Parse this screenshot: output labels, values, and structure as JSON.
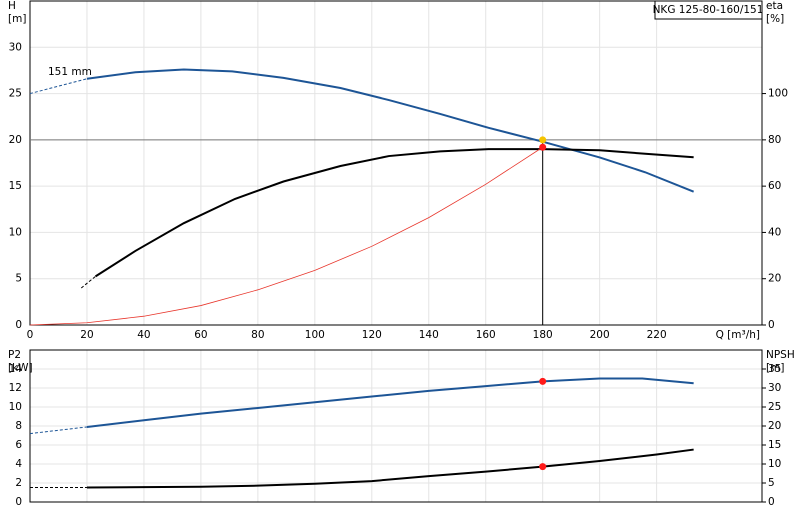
{
  "chart_data": [
    {
      "type": "line",
      "title": "NKG 125-80-160/151",
      "annotation": "151 mm",
      "ylabel": "H",
      "yunit": "[m]",
      "y2label": "eta",
      "y2unit": "[%]",
      "xlabel": "Q [m³/h]",
      "xlim": [
        0,
        257
      ],
      "xticks": [
        0,
        20,
        40,
        60,
        80,
        100,
        120,
        140,
        160,
        180,
        200,
        220
      ],
      "ylim": [
        0,
        35
      ],
      "yticks": [
        0,
        5,
        10,
        15,
        20,
        25,
        30
      ],
      "y2lim": [
        0,
        140
      ],
      "y2ticks": [
        0,
        20,
        40,
        60,
        80,
        100
      ],
      "grid": true,
      "show_xtick_labels": true,
      "series": [
        {
          "color": "#1d5596",
          "dashed": true,
          "x": [
            0,
            20
          ],
          "values": [
            25,
            26.6
          ]
        },
        {
          "color": "#1d5596",
          "x": [
            20,
            37,
            54,
            71,
            89,
            109,
            126,
            144,
            161,
            180,
            200,
            216,
            233
          ],
          "values": [
            26.6,
            27.3,
            27.6,
            27.4,
            26.7,
            25.6,
            24.3,
            22.8,
            21.3,
            19.8,
            18.1,
            16.5,
            14.4
          ]
        },
        {
          "color": "#000000",
          "dashed": true,
          "axis": "y2",
          "x": [
            18,
            23
          ],
          "values": [
            16,
            21
          ]
        },
        {
          "color": "#000000",
          "axis": "y2",
          "x": [
            23,
            37,
            54,
            72,
            89,
            109,
            126,
            144,
            161,
            180,
            200,
            216,
            233
          ],
          "values": [
            21,
            32,
            44,
            54.5,
            62,
            68.7,
            73,
            75,
            76,
            76,
            75.5,
            74,
            72.5
          ]
        },
        {
          "color": "#e8362c",
          "thin": true,
          "x": [
            0,
            20,
            40,
            60,
            80,
            100,
            120,
            140,
            160,
            180
          ],
          "values": [
            0,
            0.24,
            0.95,
            2.1,
            3.8,
            5.9,
            8.5,
            11.6,
            15.2,
            19.2
          ]
        }
      ],
      "duty_point": {
        "x": 180,
        "y": 20
      },
      "points": [
        {
          "color": "#f5c400",
          "x": 180,
          "y": 20
        },
        {
          "color": "#ff1a1a",
          "x": 180,
          "y": 19.2
        }
      ]
    },
    {
      "type": "line",
      "ylabel": "P2",
      "yunit": "[kW]",
      "y2label": "NPSH",
      "y2unit": "[m]",
      "xlim": [
        0,
        257
      ],
      "xticks": [
        0,
        20,
        40,
        60,
        80,
        100,
        120,
        140,
        160,
        180,
        200,
        220
      ],
      "ylim": [
        0,
        16
      ],
      "yticks": [
        0,
        2,
        4,
        6,
        8,
        10,
        12,
        14
      ],
      "y2lim": [
        0,
        40
      ],
      "y2ticks": [
        0,
        5,
        10,
        15,
        20,
        25,
        30,
        35
      ],
      "grid": true,
      "show_xtick_labels": false,
      "series": [
        {
          "color": "#1d5596",
          "dashed": true,
          "x": [
            0,
            20
          ],
          "values": [
            7.2,
            7.9
          ]
        },
        {
          "color": "#1d5596",
          "x": [
            20,
            40,
            60,
            80,
            100,
            120,
            140,
            160,
            180,
            200,
            215,
            233
          ],
          "values": [
            7.9,
            8.6,
            9.3,
            9.9,
            10.5,
            11.1,
            11.7,
            12.2,
            12.7,
            13.0,
            13.0,
            12.5
          ]
        },
        {
          "color": "#000000",
          "dashed": true,
          "axis": "y2",
          "x": [
            0,
            20
          ],
          "values": [
            3.8,
            3.8
          ]
        },
        {
          "color": "#000000",
          "axis": "y2",
          "x": [
            20,
            40,
            60,
            80,
            100,
            120,
            140,
            160,
            180,
            200,
            220,
            233
          ],
          "values": [
            3.8,
            3.9,
            4.0,
            4.3,
            4.8,
            5.5,
            6.8,
            8.0,
            9.3,
            10.8,
            12.5,
            13.8
          ]
        }
      ],
      "points": [
        {
          "color": "#ff1a1a",
          "x": 180,
          "y": 12.7
        },
        {
          "color": "#ff1a1a",
          "axis": "y2",
          "x": 180,
          "y": 9.3
        }
      ]
    }
  ]
}
